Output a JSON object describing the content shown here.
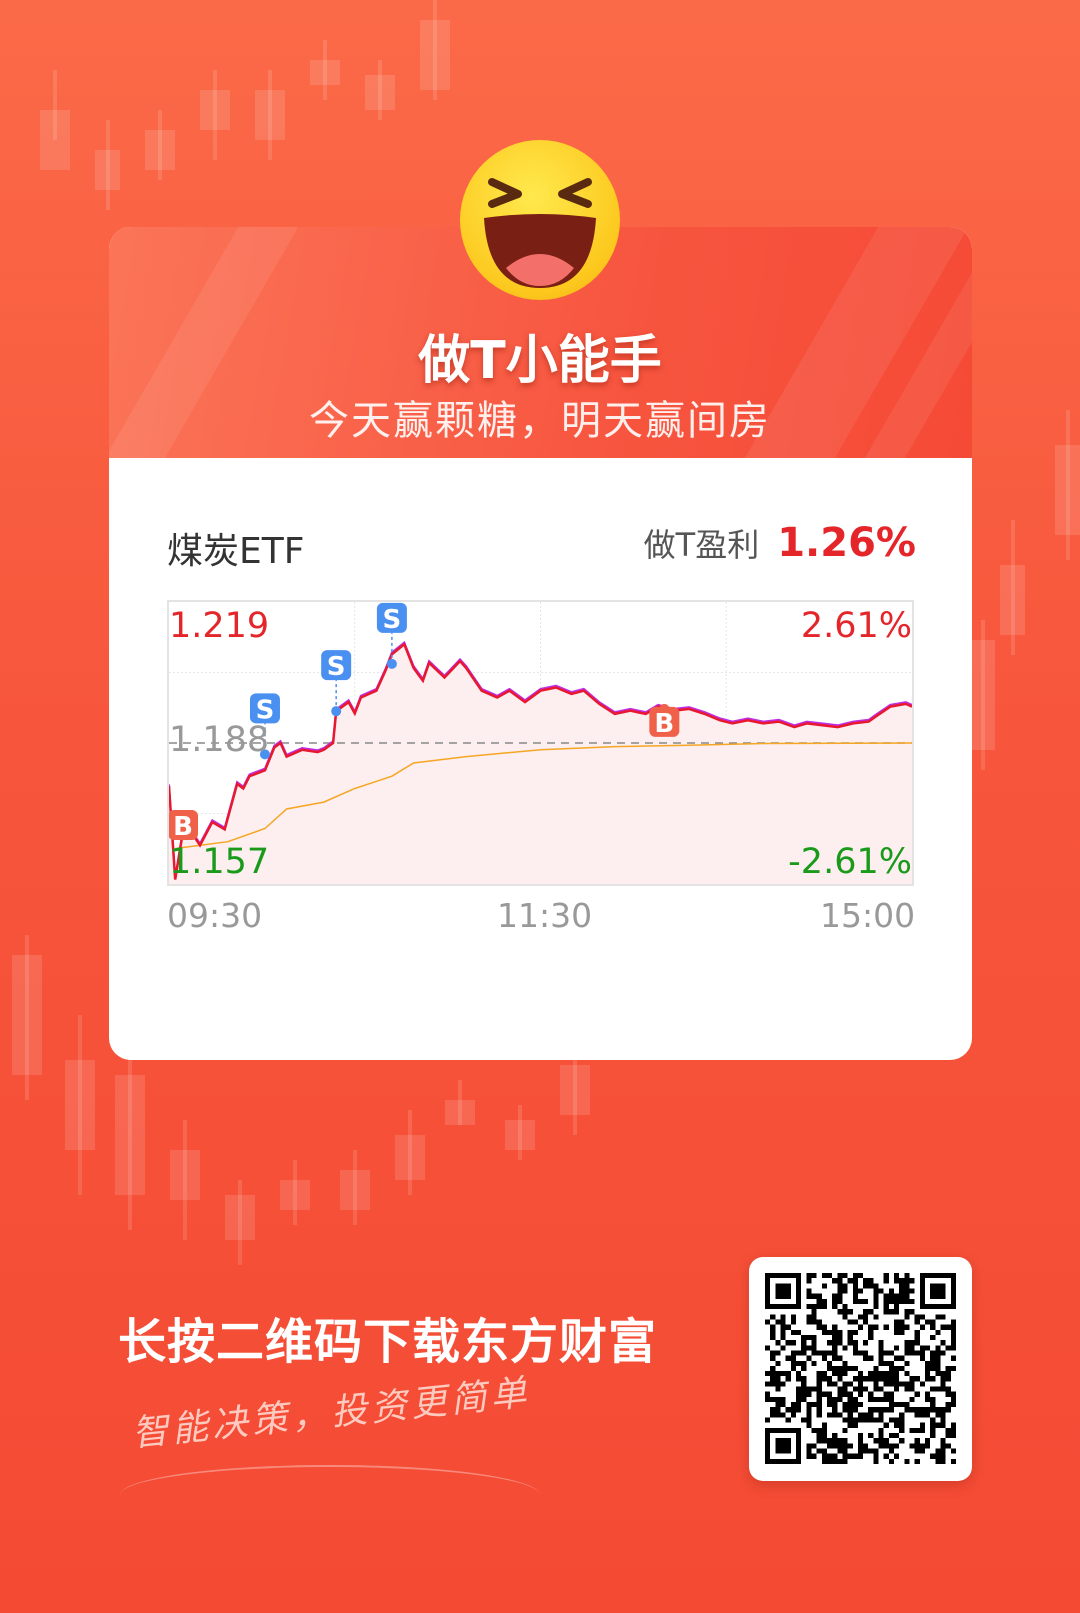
{
  "header": {
    "title": "做T小能手",
    "subtitle": "今天赢颗糖，明天赢间房"
  },
  "stock": {
    "name": "煤炭ETF",
    "profit_label": "做T盈利",
    "profit_value": "1.26%"
  },
  "colors": {
    "up": "#e4262b",
    "down": "#1a9a1a",
    "price_line": "#e8182e",
    "avg_line": "#f5a623",
    "sell": "#4a90f0",
    "buy": "#f0614a",
    "background": "#f7563c"
  },
  "chart_data": {
    "type": "line",
    "ylim": [
      1.157,
      1.219
    ],
    "prev_close": 1.188,
    "y_labels": {
      "top": "1.219",
      "mid": "1.188",
      "bottom": "1.157",
      "top_pct": "2.61%",
      "bottom_pct": "-2.61%"
    },
    "x_labels": [
      "09:30",
      "11:30",
      "15:00"
    ],
    "xlim": [
      0,
      240
    ],
    "series": [
      {
        "role": "price",
        "points": [
          [
            0,
            1.1785
          ],
          [
            2,
            1.158
          ],
          [
            5,
            1.1706
          ],
          [
            10,
            1.1655
          ],
          [
            14,
            1.1706
          ],
          [
            18,
            1.169
          ],
          [
            22,
            1.179
          ],
          [
            24,
            1.178
          ],
          [
            26,
            1.1807
          ],
          [
            31,
            1.182
          ],
          [
            34,
            1.187
          ],
          [
            36,
            1.188
          ],
          [
            38,
            1.185
          ],
          [
            43,
            1.1865
          ],
          [
            48,
            1.186
          ],
          [
            50,
            1.1865
          ],
          [
            53,
            1.188
          ],
          [
            54,
            1.195
          ],
          [
            58,
            1.197
          ],
          [
            60,
            1.1945
          ],
          [
            62,
            1.198
          ],
          [
            67,
            1.1995
          ],
          [
            70,
            1.204
          ],
          [
            72,
            1.2075
          ],
          [
            76,
            1.2097
          ],
          [
            79,
            1.2045
          ],
          [
            82,
            1.2017
          ],
          [
            84,
            1.2056
          ],
          [
            89,
            1.2024
          ],
          [
            94,
            1.206
          ],
          [
            96,
            1.2045
          ],
          [
            101,
            1.1995
          ],
          [
            106,
            1.198
          ],
          [
            110,
            1.1995
          ],
          [
            115,
            1.197
          ],
          [
            120,
            1.1995
          ],
          [
            125,
            1.2002
          ],
          [
            130,
            1.1988
          ],
          [
            134,
            1.1995
          ],
          [
            139,
            1.1966
          ],
          [
            144,
            1.1944
          ],
          [
            149,
            1.1951
          ],
          [
            154,
            1.1944
          ],
          [
            158,
            1.196
          ],
          [
            163,
            1.1951
          ],
          [
            168,
            1.1955
          ],
          [
            173,
            1.1944
          ],
          [
            178,
            1.193
          ],
          [
            182,
            1.1923
          ],
          [
            187,
            1.193
          ],
          [
            192,
            1.1923
          ],
          [
            197,
            1.1927
          ],
          [
            202,
            1.1915
          ],
          [
            206,
            1.1923
          ],
          [
            211,
            1.1919
          ],
          [
            216,
            1.1915
          ],
          [
            221,
            1.1923
          ],
          [
            226,
            1.1927
          ],
          [
            228,
            1.1937
          ],
          [
            233,
            1.196
          ],
          [
            238,
            1.1966
          ],
          [
            240,
            1.196
          ]
        ]
      },
      {
        "role": "average",
        "points": [
          [
            2,
            1.1648
          ],
          [
            19,
            1.1663
          ],
          [
            31,
            1.1692
          ],
          [
            38,
            1.1735
          ],
          [
            50,
            1.175
          ],
          [
            60,
            1.178
          ],
          [
            72,
            1.1807
          ],
          [
            79,
            1.1836
          ],
          [
            96,
            1.185
          ],
          [
            120,
            1.1865
          ],
          [
            144,
            1.1872
          ],
          [
            168,
            1.1875
          ],
          [
            192,
            1.1879
          ],
          [
            240,
            1.188
          ]
        ]
      }
    ],
    "markers": [
      {
        "type": "B",
        "minute": 1,
        "price": 1.168
      },
      {
        "type": "S",
        "minute": 31,
        "price": 1.1855
      },
      {
        "type": "S",
        "minute": 54,
        "price": 1.195
      },
      {
        "type": "S",
        "minute": 72,
        "price": 1.2054
      },
      {
        "type": "B",
        "minute": 160,
        "price": 1.1955
      }
    ]
  },
  "footer": {
    "cta": "长按二维码下载东方财富",
    "slogan": "智能决策，投资更简单"
  },
  "icons": {
    "emoji": "laughing-face-icon",
    "qr": "qr-code"
  }
}
